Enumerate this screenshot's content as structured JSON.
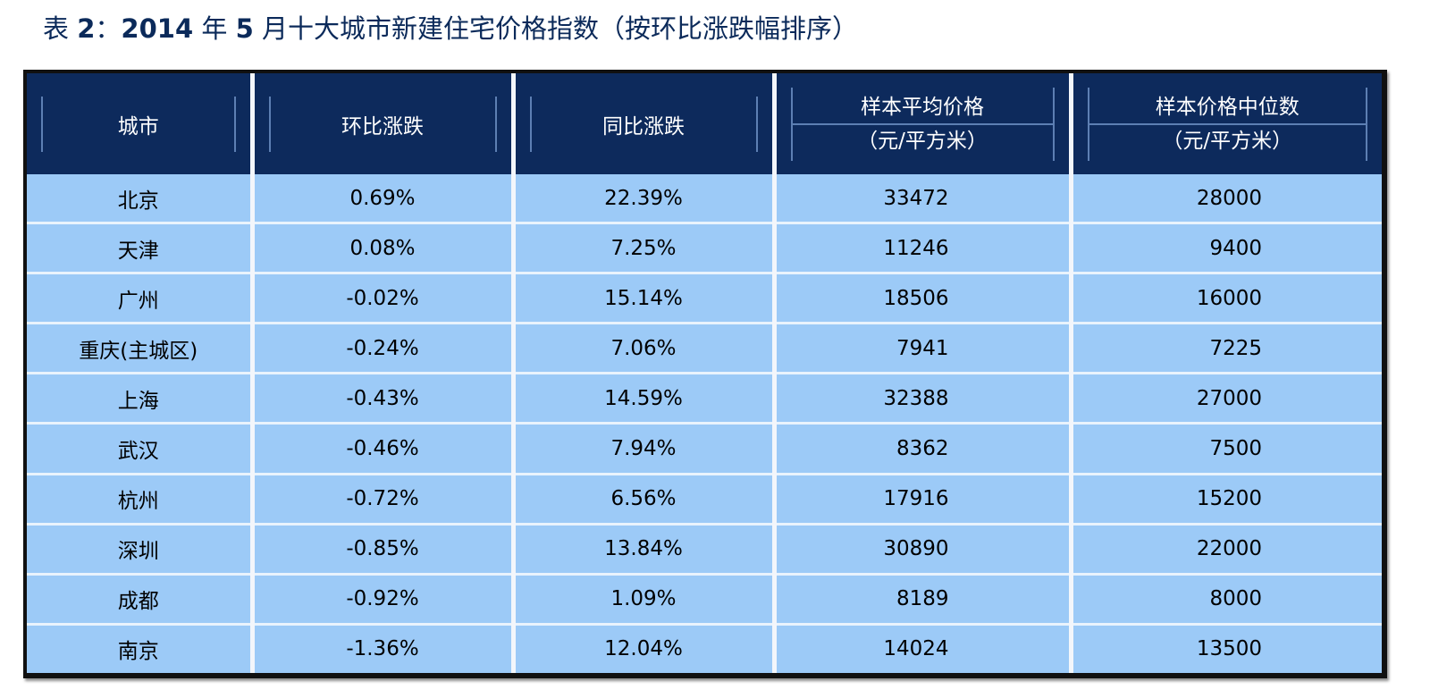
{
  "caption": {
    "prefix": "表 ",
    "number": "2",
    "sep": "：",
    "year": "2014",
    "t1": " 年 ",
    "month": "5",
    "t2": " 月十大城市新建住宅价格指数（按环比涨跌幅排序）"
  },
  "table": {
    "headers": {
      "city": "城市",
      "mom": "环比涨跌",
      "yoy": "同比涨跌",
      "avg_line1": "样本平均价格",
      "avg_line2": "（元/平方米）",
      "med_line1": "样本价格中位数",
      "med_line2": "（元/平方米）"
    },
    "rows": [
      {
        "city": "北京",
        "mom": "0.69%",
        "yoy": "22.39%",
        "avg": "33472",
        "med": "28000"
      },
      {
        "city": "天津",
        "mom": "0.08%",
        "yoy": "7.25%",
        "avg": "11246",
        "med": "9400"
      },
      {
        "city": "广州",
        "mom": "-0.02%",
        "yoy": "15.14%",
        "avg": "18506",
        "med": "16000"
      },
      {
        "city": "重庆(主城区)",
        "mom": "-0.24%",
        "yoy": "7.06%",
        "avg": "7941",
        "med": "7225"
      },
      {
        "city": "上海",
        "mom": "-0.43%",
        "yoy": "14.59%",
        "avg": "32388",
        "med": "27000"
      },
      {
        "city": "武汉",
        "mom": "-0.46%",
        "yoy": "7.94%",
        "avg": "8362",
        "med": "7500"
      },
      {
        "city": "杭州",
        "mom": "-0.72%",
        "yoy": "6.56%",
        "avg": "17916",
        "med": "15200"
      },
      {
        "city": "深圳",
        "mom": "-0.85%",
        "yoy": "13.84%",
        "avg": "30890",
        "med": "22000"
      },
      {
        "city": "成都",
        "mom": "-0.92%",
        "yoy": "1.09%",
        "avg": "8189",
        "med": "8000"
      },
      {
        "city": "南京",
        "mom": "-1.36%",
        "yoy": "12.04%",
        "avg": "14024",
        "med": "13500"
      }
    ]
  },
  "colors": {
    "header_bg": "#0d2a5c",
    "row_bg": "#9ccaf7",
    "caption_text": "#0b2a5a"
  }
}
